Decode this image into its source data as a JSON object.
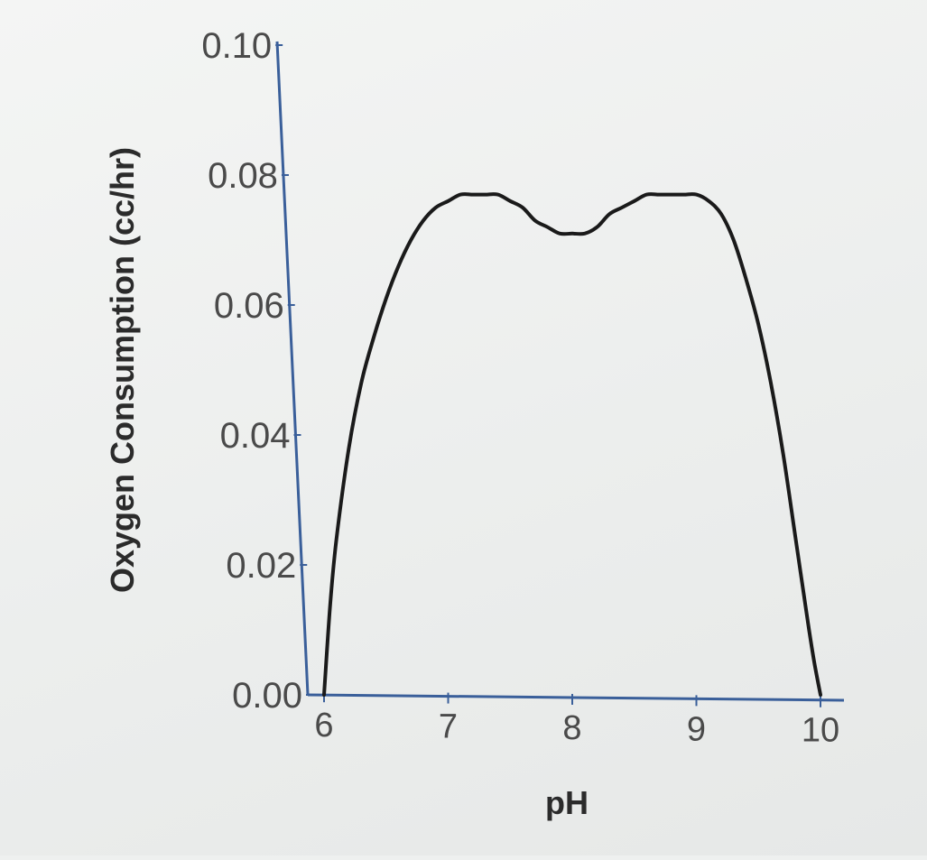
{
  "chart_data": {
    "type": "line",
    "title": "",
    "xlabel": "pH",
    "ylabel": "Oxygen Consumption (cc/hr)",
    "xlim": [
      6,
      10
    ],
    "ylim": [
      0.0,
      0.1
    ],
    "x_ticks": [
      "6",
      "7",
      "8",
      "9",
      "10"
    ],
    "y_ticks": [
      "0.00",
      "0.02",
      "0.04",
      "0.06",
      "0.08",
      "0.10"
    ],
    "grid": false,
    "legend": "none",
    "line_color": "#1a1a1a",
    "axis_color": "#3a5f9a",
    "series": [
      {
        "x": [
          6.0,
          6.05,
          6.1,
          6.2,
          6.3,
          6.4,
          6.5,
          6.6,
          6.7,
          6.8,
          6.9,
          7.0,
          7.1,
          7.2,
          7.3,
          7.4,
          7.5,
          7.6,
          7.7,
          7.8,
          7.9,
          8.0,
          8.1,
          8.2,
          8.3,
          8.4,
          8.5,
          8.6,
          8.7,
          8.8,
          8.9,
          9.0,
          9.1,
          9.2,
          9.3,
          9.4,
          9.5,
          9.6,
          9.7,
          9.8,
          9.9,
          9.95,
          10.0
        ],
        "values": [
          0.0,
          0.014,
          0.024,
          0.038,
          0.048,
          0.055,
          0.061,
          0.066,
          0.07,
          0.073,
          0.075,
          0.076,
          0.077,
          0.077,
          0.077,
          0.077,
          0.076,
          0.075,
          0.073,
          0.072,
          0.071,
          0.071,
          0.071,
          0.072,
          0.074,
          0.075,
          0.076,
          0.077,
          0.077,
          0.077,
          0.077,
          0.077,
          0.076,
          0.074,
          0.07,
          0.064,
          0.057,
          0.048,
          0.037,
          0.024,
          0.011,
          0.005,
          0.0
        ]
      }
    ]
  }
}
